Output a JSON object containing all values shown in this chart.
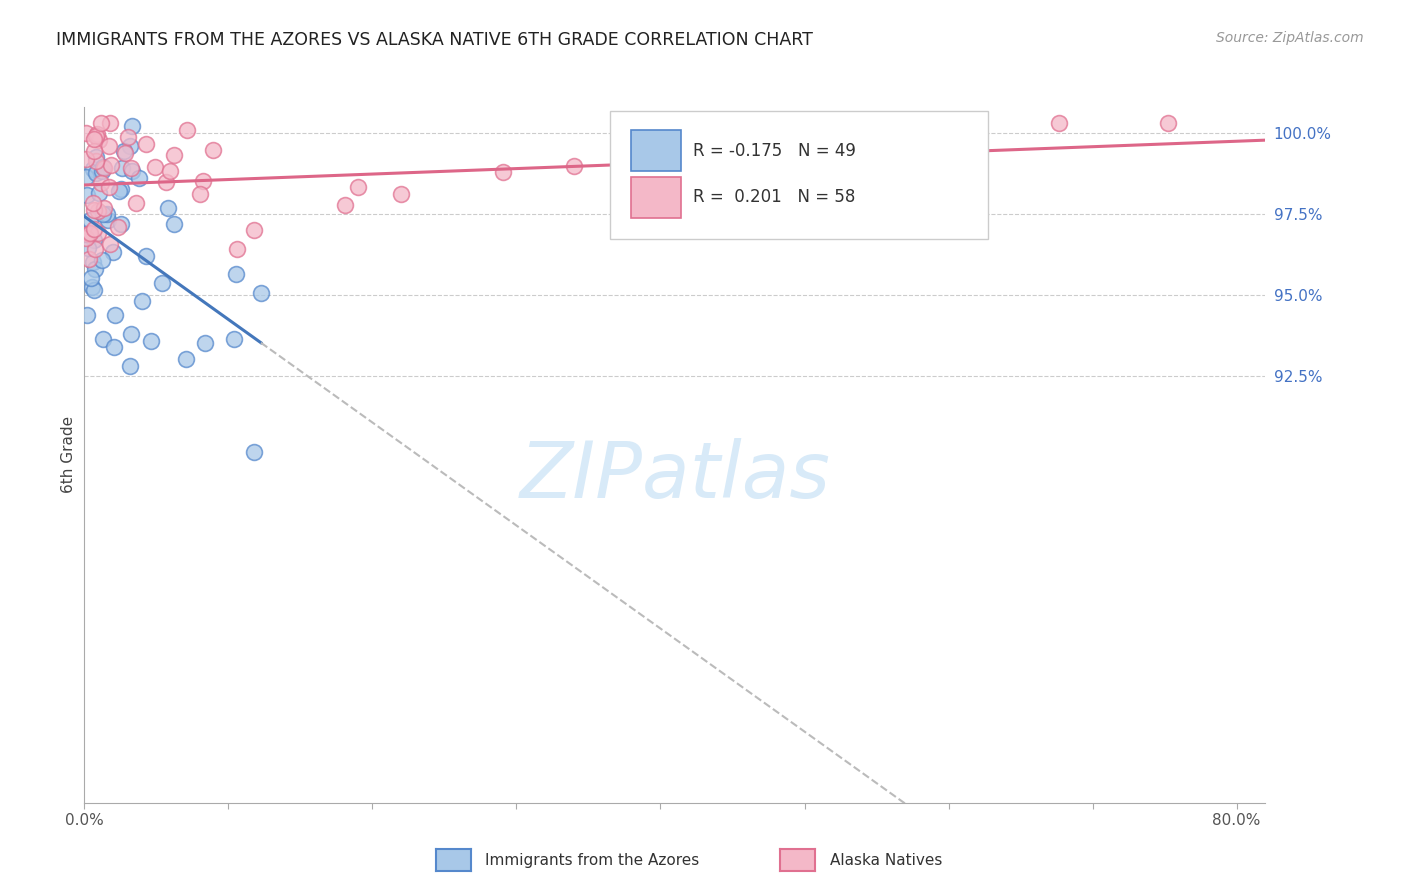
{
  "title": "IMMIGRANTS FROM THE AZORES VS ALASKA NATIVE 6TH GRADE CORRELATION CHART",
  "source": "Source: ZipAtlas.com",
  "ylabel": "6th Grade",
  "legend_label1": "Immigrants from the Azores",
  "legend_label2": "Alaska Natives",
  "R1": -0.175,
  "N1": 49,
  "R2": 0.201,
  "N2": 58,
  "color_blue_fill": "#a8c8e8",
  "color_blue_edge": "#5588cc",
  "color_pink_fill": "#f4b8c8",
  "color_pink_edge": "#e07090",
  "color_blue_line": "#4477bb",
  "color_pink_line": "#dd6688",
  "color_gray_dash": "#bbbbbb",
  "color_right_axis": "#4472c4",
  "color_grid": "#cccccc",
  "watermark_color": "#d8eaf8",
  "xlim_min": 0.0,
  "xlim_max": 0.82,
  "ylim_min": 0.793,
  "ylim_max": 1.008,
  "ytick_pos": [
    1.0,
    0.975,
    0.95,
    0.925
  ],
  "ytick_labels": [
    "100.0%",
    "97.5%",
    "95.0%",
    "92.5%"
  ],
  "xtick_pos": [
    0.0,
    0.1,
    0.2,
    0.3,
    0.4,
    0.5,
    0.6,
    0.7,
    0.8
  ],
  "xtick_labels": [
    "0.0%",
    "",
    "",
    "",
    "",
    "",
    "",
    "",
    "80.0%"
  ]
}
